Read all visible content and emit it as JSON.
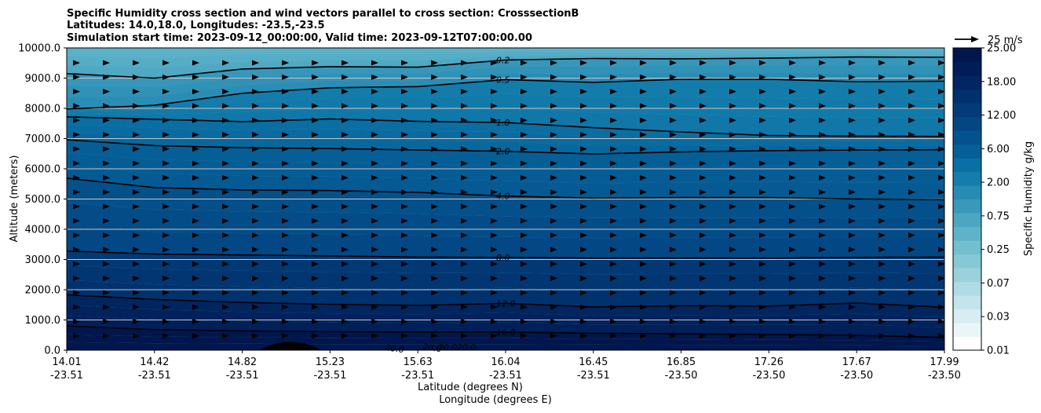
{
  "chart_data": {
    "type": "contour",
    "title_lines": [
      "Specific Humidity cross section and wind vectors parallel to cross section: CrosssectionB",
      "Latitudes: 14.0,18.0, Longitudes: -23.5,-23.5",
      "Simulation start time: 2023-09-12_00:00:00, Valid time: 2023-09-12T07:00:00.00"
    ],
    "xlabel_lat": "Latitude (degrees N)",
    "xlabel_lon": "Longitude (degrees E)",
    "ylabel": "Altitude (meters)",
    "x_ticks_lat": [
      "14.01",
      "14.42",
      "14.82",
      "15.23",
      "15.63",
      "16.04",
      "16.45",
      "16.85",
      "17.26",
      "17.67",
      "17.99"
    ],
    "x_ticks_lon": [
      "-23.51",
      "-23.51",
      "-23.51",
      "-23.51",
      "-23.51",
      "-23.51",
      "-23.51",
      "-23.50",
      "-23.50",
      "-23.50",
      "-23.50"
    ],
    "x_range": [
      14.01,
      17.99
    ],
    "ylim": [
      0,
      10000
    ],
    "y_ticks": [
      0,
      1000,
      2000,
      3000,
      4000,
      5000,
      6000,
      7000,
      8000,
      9000,
      10000
    ],
    "y_tick_labels": [
      "0.0",
      "1000.0",
      "2000.0",
      "3000.0",
      "4000.0",
      "5000.0",
      "6000.0",
      "7000.0",
      "8000.0",
      "9000.0",
      "10000.0"
    ],
    "contour_lines": [
      {
        "level": "0.2",
        "altitudes": [
          9150,
          9000,
          9300,
          9380,
          9360,
          9600,
          9650,
          9640,
          9660,
          9700,
          9690
        ]
      },
      {
        "level": "0.5",
        "altitudes": [
          7980,
          8100,
          8500,
          8680,
          8720,
          8950,
          8860,
          8960,
          8960,
          8880,
          8900
        ]
      },
      {
        "level": "1.0",
        "altitudes": [
          7720,
          7640,
          7560,
          7650,
          7570,
          7530,
          7360,
          7220,
          7100,
          7080,
          7070
        ]
      },
      {
        "level": "2.0",
        "altitudes": [
          6960,
          6770,
          6700,
          6670,
          6620,
          6580,
          6490,
          6560,
          6600,
          6620,
          6630
        ]
      },
      {
        "level": "4.0",
        "altitudes": [
          5690,
          5380,
          5300,
          5280,
          5220,
          5100,
          5030,
          5050,
          5050,
          5000,
          4980
        ]
      },
      {
        "level": "8.0",
        "altitudes": [
          3280,
          3180,
          3150,
          3120,
          3080,
          3070,
          3050,
          3050,
          3050,
          3070,
          3080
        ]
      },
      {
        "level": "12.0",
        "altitudes": [
          1830,
          1680,
          1580,
          1520,
          1480,
          1550,
          1430,
          1470,
          1460,
          1560,
          1420
        ]
      },
      {
        "level": "16.0",
        "altitudes": [
          800,
          680,
          640,
          610,
          600,
          600,
          560,
          540,
          520,
          490,
          420
        ]
      }
    ],
    "contour_labels_20": [
      "20.0",
      "20.0",
      "20.0",
      "20.0"
    ],
    "colorbar": {
      "label": "Specific Humidity g/kg",
      "tick_labels": [
        "0.01",
        "0.03",
        "0.07",
        "0.25",
        "0.75",
        "2.00",
        "6.00",
        "12.00",
        "18.00",
        "25.00"
      ],
      "colors": [
        "#ffffff",
        "#eaf5f7",
        "#d7edf1",
        "#c3e4ea",
        "#aedbe4",
        "#9ad1dd",
        "#86c8d6",
        "#72bfcf",
        "#5fb3c9",
        "#4ca6c2",
        "#3a99bb",
        "#278bb4",
        "#157dab",
        "#0a6fa3",
        "#065f98",
        "#04528d",
        "#034682",
        "#023b77",
        "#01306c",
        "#012661",
        "#011d57",
        "#00164d"
      ]
    },
    "quiver_key": {
      "label": "25 m/s",
      "speed": 25
    },
    "wind_grid": {
      "columns": 30,
      "rows": 20,
      "direction": "parallel, positive"
    }
  }
}
